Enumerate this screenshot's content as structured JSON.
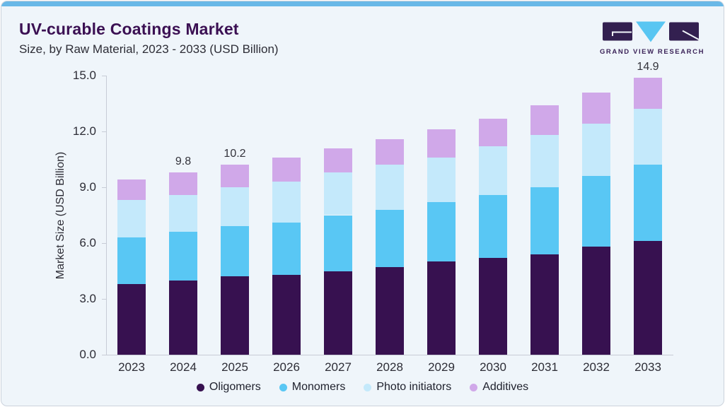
{
  "card": {
    "title": "UV-curable Coatings Market",
    "subtitle": "Size, by Raw Material, 2023 - 2033 (USD Billion)",
    "accent_color": "#69b8e7",
    "title_color": "#3b1053",
    "background_color": "#eff5fa"
  },
  "logo": {
    "text": "GRAND VIEW RESEARCH",
    "dark_color": "#332050",
    "cyan_color": "#59c6f2"
  },
  "chart_data": {
    "type": "bar",
    "stacked": true,
    "title": "UV-curable Coatings Market Size, by Raw Material, 2023 - 2033 (USD Billion)",
    "xlabel": "",
    "ylabel": "Market Size (USD Billion)",
    "ylim": [
      0,
      15
    ],
    "yticks": [
      "0.0",
      "3.0",
      "6.0",
      "9.0",
      "12.0",
      "15.0"
    ],
    "grid": false,
    "legend_position": "bottom",
    "categories": [
      "2023",
      "2024",
      "2025",
      "2026",
      "2027",
      "2028",
      "2029",
      "2030",
      "2031",
      "2032",
      "2033"
    ],
    "series": [
      {
        "name": "Oligomers",
        "color": "#371150",
        "values": [
          3.8,
          4.0,
          4.2,
          4.3,
          4.5,
          4.7,
          5.0,
          5.2,
          5.4,
          5.8,
          6.1
        ]
      },
      {
        "name": "Monomers",
        "color": "#59c7f4",
        "values": [
          2.5,
          2.6,
          2.7,
          2.8,
          3.0,
          3.1,
          3.2,
          3.4,
          3.6,
          3.8,
          4.1
        ]
      },
      {
        "name": "Photo initiators",
        "color": "#c4e9fb",
        "values": [
          2.0,
          2.0,
          2.1,
          2.2,
          2.3,
          2.4,
          2.4,
          2.6,
          2.8,
          2.8,
          3.0
        ]
      },
      {
        "name": "Additives",
        "color": "#d0a8e9",
        "values": [
          1.1,
          1.2,
          1.2,
          1.3,
          1.3,
          1.4,
          1.5,
          1.5,
          1.6,
          1.7,
          1.7
        ]
      }
    ],
    "totals": [
      9.4,
      9.8,
      10.2,
      10.6,
      11.1,
      11.6,
      12.1,
      12.7,
      13.4,
      14.1,
      14.9
    ],
    "bar_labels": [
      {
        "category": "2024",
        "value": "9.8"
      },
      {
        "category": "2025",
        "value": "10.2"
      },
      {
        "category": "2033",
        "value": "14.9"
      }
    ]
  }
}
